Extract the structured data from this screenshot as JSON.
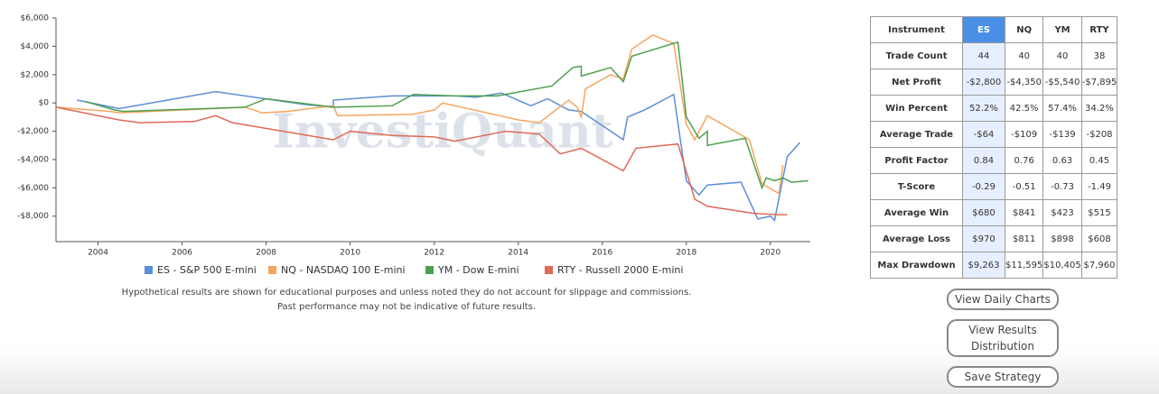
{
  "chart_data": {
    "type": "line",
    "watermark": "InvestiQuant",
    "xlim": [
      2003,
      2020.95
    ],
    "xticks": [
      2004,
      2006,
      2008,
      2010,
      2012,
      2014,
      2016,
      2018,
      2020
    ],
    "ylim": [
      -9800,
      6000
    ],
    "yticks": [
      {
        "value": -8000,
        "label": "-$8,000"
      },
      {
        "value": -6000,
        "label": "-$6,000"
      },
      {
        "value": -4000,
        "label": "-$4,000"
      },
      {
        "value": -2000,
        "label": "-$2,000"
      },
      {
        "value": 0,
        "label": "$0"
      },
      {
        "value": 2000,
        "label": "$2,000"
      },
      {
        "value": 4000,
        "label": "$4,000"
      },
      {
        "value": 6000,
        "label": "$6,000"
      }
    ],
    "grid": false,
    "series": [
      {
        "name": "ES - S&P 500 E-mini",
        "color": "#5b8fd6",
        "x": [
          2003.5,
          2004.5,
          2006.8,
          2008.9,
          2009.6,
          2009.6,
          2011,
          2012.5,
          2013,
          2013.6,
          2014.3,
          2014.7,
          2015.2,
          2015.5,
          2015.6,
          2016.5,
          2016.6,
          2017,
          2017.7,
          2018,
          2018.3,
          2018.5,
          2019.3,
          2019.7,
          2020,
          2020.1,
          2020.4,
          2020.7
        ],
        "values": [
          200,
          -400,
          800,
          -100,
          -300,
          200,
          500,
          500,
          400,
          700,
          -200,
          300,
          -500,
          -600,
          -800,
          -2600,
          -1000,
          -500,
          600,
          -5500,
          -6500,
          -5800,
          -5600,
          -8200,
          -8000,
          -8300,
          -3800,
          -2800
        ]
      },
      {
        "name": "NQ - NASDAQ 100 E-mini",
        "color": "#f5a55f",
        "x": [
          2003,
          2004.3,
          2004.5,
          2007.5,
          2007.9,
          2008.5,
          2009.6,
          2009.7,
          2011.5,
          2012,
          2012.2,
          2014,
          2014.5,
          2015.2,
          2015.4,
          2015.5,
          2015.6,
          2016.2,
          2016.5,
          2016.7,
          2017.2,
          2017.7,
          2018,
          2018.2,
          2018.5,
          2019.5,
          2019.8,
          2020.2,
          2020.3
        ],
        "values": [
          -300,
          -600,
          -700,
          -300,
          -700,
          -600,
          -200,
          -900,
          -800,
          -500,
          0,
          -1200,
          -1400,
          200,
          -300,
          -1000,
          1000,
          2000,
          1700,
          3800,
          4800,
          4200,
          -1500,
          -2600,
          -900,
          -2600,
          -5700,
          -6400,
          -4400
        ]
      },
      {
        "name": "YM - Dow E-mini",
        "color": "#4ea04e",
        "x": [
          2003.7,
          2004.4,
          2004.6,
          2007.5,
          2008,
          2009.6,
          2011,
          2011.5,
          2012.5,
          2013.5,
          2014.8,
          2015.3,
          2015.5,
          2015.5,
          2016.2,
          2016.5,
          2016.7,
          2017.8,
          2018,
          2018.3,
          2018.5,
          2018.5,
          2019.4,
          2019.8,
          2019.9,
          2020.1,
          2020.3,
          2020.5,
          2020.9
        ],
        "values": [
          100,
          -500,
          -600,
          -300,
          300,
          -300,
          -200,
          600,
          500,
          500,
          1200,
          2500,
          2600,
          1900,
          2500,
          1500,
          3300,
          4300,
          -1000,
          -2500,
          -2000,
          -3000,
          -2500,
          -6000,
          -5300,
          -5500,
          -5300,
          -5600,
          -5500
        ]
      },
      {
        "name": "RTY - Russell 2000 E-mini",
        "color": "#e06a55",
        "x": [
          2003,
          2004.5,
          2005,
          2006.3,
          2006.8,
          2007.2,
          2009.6,
          2010,
          2011,
          2012,
          2012.5,
          2013.7,
          2014.5,
          2015,
          2015.5,
          2016.5,
          2016.8,
          2017.8,
          2018.2,
          2018.5,
          2019.6,
          2020.2,
          2020.4
        ],
        "values": [
          -300,
          -1200,
          -1400,
          -1300,
          -900,
          -1400,
          -2600,
          -2000,
          -2300,
          -2400,
          -2700,
          -2000,
          -2200,
          -3600,
          -3200,
          -4800,
          -3200,
          -2900,
          -6800,
          -7300,
          -7800,
          -7900,
          -7900
        ]
      }
    ]
  },
  "disclaimer": [
    "Hypothetical results are shown for educational purposes and unless noted they do not account for slippage and commissions.",
    "Past performance may not be indicative of future results."
  ],
  "table": {
    "header": [
      "Instrument",
      "ES",
      "NQ",
      "YM",
      "RTY"
    ],
    "rows": [
      [
        "Trade Count",
        "44",
        "40",
        "40",
        "38"
      ],
      [
        "Net Profit",
        "-$2,800",
        "-$4,350",
        "-$5,540",
        "-$7,895"
      ],
      [
        "Win Percent",
        "52.2%",
        "42.5%",
        "57.4%",
        "34.2%"
      ],
      [
        "Average Trade",
        "-$64",
        "-$109",
        "-$139",
        "-$208"
      ],
      [
        "Profit Factor",
        "0.84",
        "0.76",
        "0.63",
        "0.45"
      ],
      [
        "T-Score",
        "-0.29",
        "-0.51",
        "-0.73",
        "-1.49"
      ],
      [
        "Average Win",
        "$680",
        "$841",
        "$423",
        "$515"
      ],
      [
        "Average Loss",
        "$970",
        "$811",
        "$898",
        "$608"
      ],
      [
        "Max Drawdown",
        "$9,263",
        "$11,595",
        "$10,405",
        "$7,960"
      ]
    ]
  },
  "buttons": [
    "View Daily Charts",
    "View Results Distribution",
    "Save Strategy"
  ]
}
